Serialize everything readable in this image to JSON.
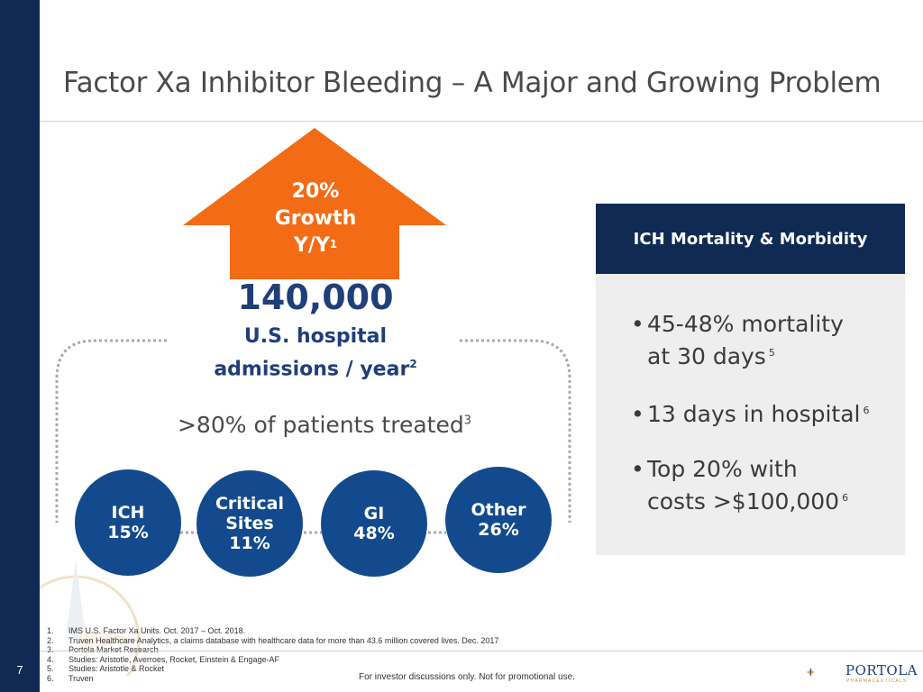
{
  "slide": {
    "number": "7",
    "title": "Factor Xa Inhibitor Bleeding – A Major and Growing Problem"
  },
  "growth_arrow": {
    "line1": "20%",
    "line2": "Growth",
    "line3": "Y/Y",
    "footnote": "1",
    "color": "#f36b14"
  },
  "admissions": {
    "number": "140,000",
    "line1": "U.S. hospital",
    "line2": "admissions / year",
    "footnote": "2"
  },
  "treated": {
    "text": ">80% of patients treated",
    "footnote": "3"
  },
  "sites": [
    {
      "line1": "ICH",
      "line2": "",
      "value": "15%"
    },
    {
      "line1": "Critical",
      "line2": "Sites",
      "value": "11%"
    },
    {
      "line1": "GI",
      "line2": "",
      "value": "48%"
    },
    {
      "line1": "Other",
      "line2": "",
      "value": "26%"
    }
  ],
  "ich_panel": {
    "header": "ICH Mortality & Morbidity",
    "bullets": [
      {
        "line1": "45-48% mortality",
        "line2": "at 30 days",
        "footnote": "5"
      },
      {
        "line1": "13 days in hospital",
        "line2": "",
        "footnote": "6"
      },
      {
        "line1": "Top 20% with",
        "line2": "costs >$100,000",
        "footnote": "6"
      }
    ]
  },
  "footnotes": [
    {
      "num": "1.",
      "text": "IMS U.S. Factor Xa Units. Oct. 2017 – Oct. 2018."
    },
    {
      "num": "2.",
      "text": "Truven Healthcare Analytics, a claims database with healthcare data for more than 43.6 million covered lives. Dec. 2017"
    },
    {
      "num": "3.",
      "text": "Portola Market Research"
    },
    {
      "num": "4.",
      "text": "Studies: Aristotle, Averroes, Rocket, Einstein & Engage-AF"
    },
    {
      "num": "5.",
      "text": "Studies: Aristotle & Rocket"
    },
    {
      "num": "6.",
      "text": "Truven"
    }
  ],
  "disclaimer": "For investor discussions only.  Not for promotional use.",
  "logo": {
    "name": "PORTOLA",
    "sub": "PHARMACEUTICALS",
    "icon": "compass-rose-icon"
  },
  "colors": {
    "navy": "#102a53",
    "circle_blue": "#134a8e",
    "text_blue": "#1f3f7a",
    "orange": "#f36b14",
    "panel_gray": "#eeeeee"
  }
}
